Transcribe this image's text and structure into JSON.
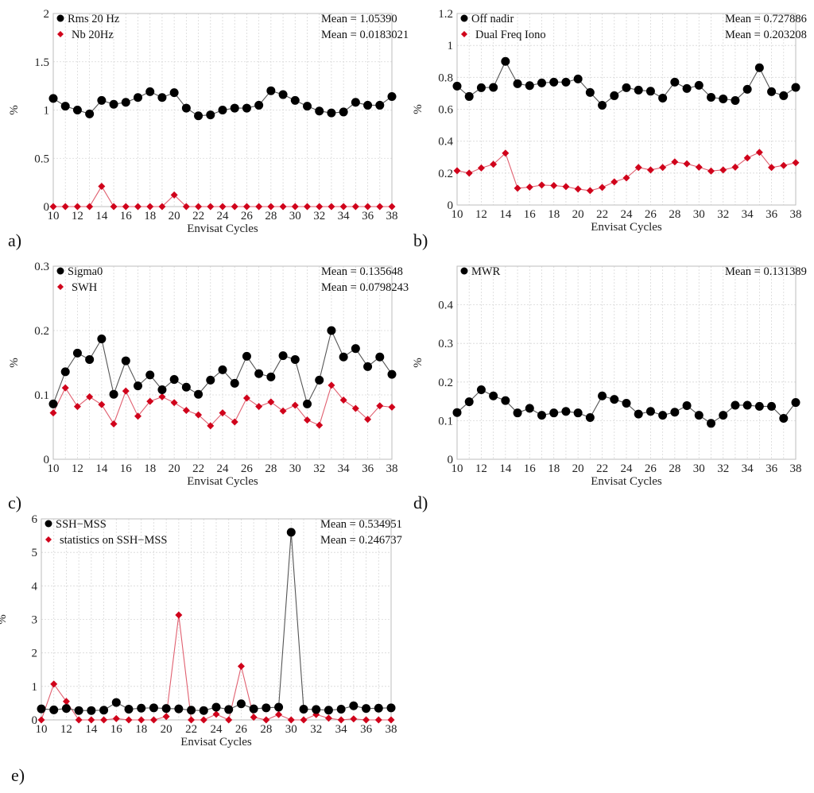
{
  "figure": {
    "panel_labels": [
      "a)",
      "b)",
      "c)",
      "d)",
      "e)"
    ]
  },
  "colors": {
    "series_black": "#000000",
    "series_red": "#d0021b",
    "line_black": "#555555",
    "line_red": "#e06070"
  },
  "chart_data": [
    {
      "id": "a",
      "type": "line",
      "xlabel": "Envisat Cycles",
      "ylabel": "%",
      "xlim": [
        10,
        38
      ],
      "ylim": [
        0,
        2
      ],
      "xticks": [
        10,
        12,
        14,
        16,
        18,
        20,
        22,
        24,
        26,
        28,
        30,
        32,
        34,
        36,
        38
      ],
      "yticks": [
        0,
        0.5,
        1,
        1.5,
        2
      ],
      "ytick_labels": [
        "0",
        "0.5",
        "1",
        "1.5",
        "2"
      ],
      "grid": true,
      "legend_position": "top-left",
      "x": [
        10,
        11,
        12,
        13,
        14,
        15,
        16,
        17,
        18,
        19,
        20,
        21,
        22,
        23,
        24,
        25,
        26,
        27,
        28,
        29,
        30,
        31,
        32,
        33,
        34,
        35,
        36,
        37,
        38
      ],
      "series": [
        {
          "name": "Rms 20 Hz",
          "marker": "circle",
          "color": "black",
          "mean_text": "Mean = 1.05390",
          "values": [
            1.12,
            1.04,
            1.0,
            0.96,
            1.1,
            1.06,
            1.08,
            1.13,
            1.19,
            1.13,
            1.18,
            1.02,
            0.94,
            0.95,
            1.0,
            1.02,
            1.02,
            1.05,
            1.2,
            1.16,
            1.1,
            1.04,
            0.99,
            0.97,
            0.98,
            1.08,
            1.05,
            1.05,
            1.14
          ]
        },
        {
          "name": "Nb 20Hz",
          "marker": "diamond",
          "color": "red",
          "mean_text": "Mean = 0.0183021",
          "values": [
            0,
            0,
            0,
            0,
            0.21,
            0,
            0,
            0,
            0,
            0,
            0.12,
            0,
            0,
            0,
            0,
            0,
            0,
            0,
            0,
            0,
            0,
            0,
            0,
            0,
            0,
            0,
            0,
            0,
            0
          ]
        }
      ]
    },
    {
      "id": "b",
      "type": "line",
      "xlabel": "Envisat Cycles",
      "ylabel": "%",
      "xlim": [
        10,
        38
      ],
      "ylim": [
        0,
        1.2
      ],
      "xticks": [
        10,
        12,
        14,
        16,
        18,
        20,
        22,
        24,
        26,
        28,
        30,
        32,
        34,
        36,
        38
      ],
      "yticks": [
        0,
        0.2,
        0.4,
        0.6,
        0.8,
        1,
        1.2
      ],
      "ytick_labels": [
        "0",
        "0.2",
        "0.4",
        "0.6",
        "0.8",
        "1",
        "1.2"
      ],
      "grid": true,
      "legend_position": "top-left",
      "x": [
        10,
        11,
        12,
        13,
        14,
        15,
        16,
        17,
        18,
        19,
        20,
        21,
        22,
        23,
        24,
        25,
        26,
        27,
        28,
        29,
        30,
        31,
        32,
        33,
        34,
        35,
        36,
        37,
        38
      ],
      "series": [
        {
          "name": "Off nadir",
          "marker": "circle",
          "color": "black",
          "mean_text": "Mean = 0.727886",
          "values": [
            0.745,
            0.68,
            0.735,
            0.737,
            0.9,
            0.76,
            0.748,
            0.765,
            0.77,
            0.77,
            0.79,
            0.705,
            0.625,
            0.685,
            0.735,
            0.72,
            0.713,
            0.67,
            0.77,
            0.73,
            0.75,
            0.675,
            0.665,
            0.655,
            0.725,
            0.86,
            0.71,
            0.685,
            0.737
          ]
        },
        {
          "name": "Dual Freq Iono",
          "marker": "diamond",
          "color": "red",
          "mean_text": "Mean = 0.203208",
          "values": [
            0.215,
            0.2,
            0.232,
            0.255,
            0.325,
            0.105,
            0.112,
            0.125,
            0.122,
            0.115,
            0.1,
            0.09,
            0.11,
            0.145,
            0.17,
            0.235,
            0.22,
            0.235,
            0.27,
            0.258,
            0.237,
            0.213,
            0.22,
            0.237,
            0.295,
            0.33,
            0.235,
            0.248,
            0.265
          ]
        }
      ]
    },
    {
      "id": "c",
      "type": "line",
      "xlabel": "Envisat Cycles",
      "ylabel": "%",
      "xlim": [
        10,
        38
      ],
      "ylim": [
        0,
        0.3
      ],
      "xticks": [
        10,
        12,
        14,
        16,
        18,
        20,
        22,
        24,
        26,
        28,
        30,
        32,
        34,
        36,
        38
      ],
      "yticks": [
        0,
        0.1,
        0.2,
        0.3
      ],
      "ytick_labels": [
        "0",
        "0.1",
        "0.2",
        "0.3"
      ],
      "grid": true,
      "legend_position": "top-left",
      "x": [
        10,
        11,
        12,
        13,
        14,
        15,
        16,
        17,
        18,
        19,
        20,
        21,
        22,
        23,
        24,
        25,
        26,
        27,
        28,
        29,
        30,
        31,
        32,
        33,
        34,
        35,
        36,
        37,
        38
      ],
      "series": [
        {
          "name": "Sigma0",
          "marker": "circle",
          "color": "black",
          "mean_text": "Mean = 0.135648",
          "values": [
            0.086,
            0.136,
            0.165,
            0.155,
            0.187,
            0.101,
            0.153,
            0.114,
            0.131,
            0.108,
            0.124,
            0.112,
            0.101,
            0.123,
            0.139,
            0.118,
            0.16,
            0.133,
            0.128,
            0.161,
            0.155,
            0.086,
            0.123,
            0.2,
            0.159,
            0.172,
            0.144,
            0.159,
            0.132
          ]
        },
        {
          "name": "SWH",
          "marker": "diamond",
          "color": "red",
          "mean_text": "Mean = 0.0798243",
          "values": [
            0.072,
            0.111,
            0.082,
            0.097,
            0.085,
            0.055,
            0.106,
            0.067,
            0.09,
            0.097,
            0.088,
            0.076,
            0.069,
            0.052,
            0.072,
            0.058,
            0.095,
            0.082,
            0.089,
            0.075,
            0.084,
            0.061,
            0.053,
            0.115,
            0.092,
            0.079,
            0.062,
            0.083,
            0.081
          ]
        }
      ]
    },
    {
      "id": "d",
      "type": "line",
      "xlabel": "Envisat Cycles",
      "ylabel": "%",
      "xlim": [
        10,
        38
      ],
      "ylim": [
        0,
        0.5
      ],
      "xticks": [
        10,
        12,
        14,
        16,
        18,
        20,
        22,
        24,
        26,
        28,
        30,
        32,
        34,
        36,
        38
      ],
      "yticks": [
        0,
        0.1,
        0.2,
        0.3,
        0.4
      ],
      "ytick_labels": [
        "0",
        "0.1",
        "0.2",
        "0.3",
        "0.4"
      ],
      "grid": true,
      "legend_position": "top-left",
      "x": [
        10,
        11,
        12,
        13,
        14,
        15,
        16,
        17,
        18,
        19,
        20,
        21,
        22,
        23,
        24,
        25,
        26,
        27,
        28,
        29,
        30,
        31,
        32,
        33,
        34,
        35,
        36,
        37,
        38
      ],
      "series": [
        {
          "name": "MWR",
          "marker": "circle",
          "color": "black",
          "mean_text": "Mean = 0.131389",
          "values": [
            0.121,
            0.149,
            0.18,
            0.164,
            0.152,
            0.12,
            0.132,
            0.114,
            0.12,
            0.124,
            0.12,
            0.108,
            0.164,
            0.155,
            0.145,
            0.117,
            0.124,
            0.114,
            0.122,
            0.139,
            0.114,
            0.093,
            0.114,
            0.14,
            0.14,
            0.137,
            0.137,
            0.106,
            0.147
          ]
        }
      ]
    },
    {
      "id": "e",
      "type": "line",
      "xlabel": "Envisat Cycles",
      "ylabel": "%",
      "xlim": [
        10,
        38
      ],
      "ylim": [
        0,
        6
      ],
      "xticks": [
        10,
        12,
        14,
        16,
        18,
        20,
        22,
        24,
        26,
        28,
        30,
        32,
        34,
        36,
        38
      ],
      "yticks": [
        0,
        1,
        2,
        3,
        4,
        5,
        6
      ],
      "ytick_labels": [
        "0",
        "1",
        "2",
        "3",
        "4",
        "5",
        "6"
      ],
      "grid": true,
      "legend_position": "top-left",
      "x": [
        10,
        11,
        12,
        13,
        14,
        15,
        16,
        17,
        18,
        19,
        20,
        21,
        22,
        23,
        24,
        25,
        26,
        27,
        28,
        29,
        30,
        31,
        32,
        33,
        34,
        35,
        36,
        37,
        38
      ],
      "series": [
        {
          "name": "SSH−MSS",
          "marker": "circle",
          "color": "black",
          "mean_text": "Mean = 0.534951",
          "values": [
            0.33,
            0.3,
            0.34,
            0.28,
            0.28,
            0.29,
            0.52,
            0.32,
            0.35,
            0.36,
            0.34,
            0.33,
            0.29,
            0.28,
            0.38,
            0.31,
            0.48,
            0.33,
            0.36,
            0.38,
            5.6,
            0.32,
            0.31,
            0.29,
            0.32,
            0.42,
            0.34,
            0.35,
            0.36
          ]
        },
        {
          "name": "statistics on SSH−MSS",
          "marker": "diamond",
          "color": "red",
          "mean_text": "Mean = 0.246737",
          "values": [
            0,
            1.07,
            0.55,
            0,
            0,
            0,
            0.04,
            0,
            0,
            0,
            0.1,
            3.13,
            0,
            0,
            0.17,
            0,
            1.6,
            0.08,
            0,
            0.16,
            0,
            0,
            0.16,
            0.05,
            0,
            0.03,
            0,
            0,
            0
          ]
        }
      ]
    }
  ]
}
